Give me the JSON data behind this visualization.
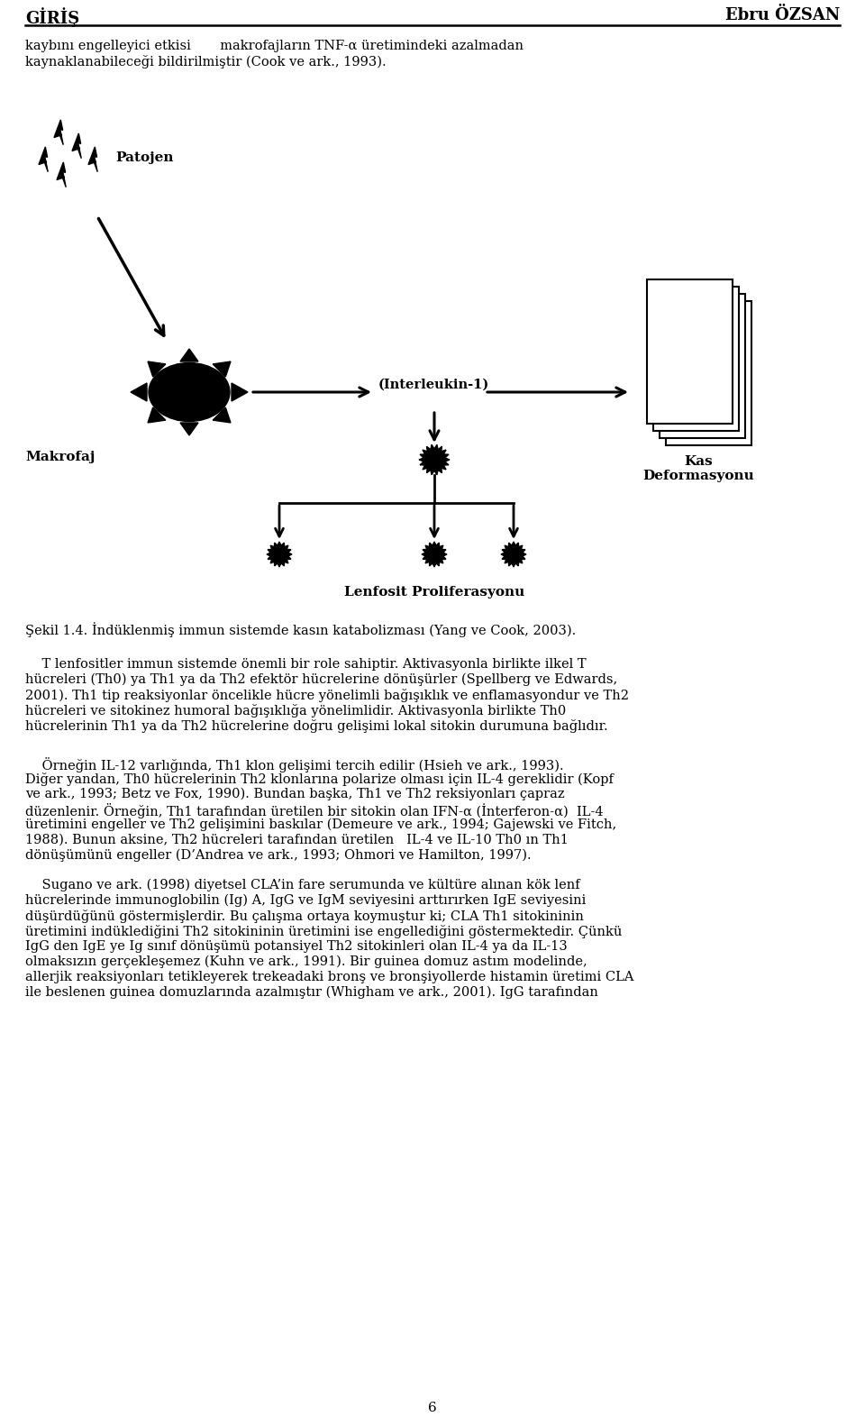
{
  "bg_color": "#ffffff",
  "header_left": "GİRİŞ",
  "header_right": "Ebru ÖZSAN",
  "body_fontsize": 10.5,
  "page_number": "6",
  "para1_line1": "kaybını engelleyici etkisi       makrofajların TNF-α üretimindeki azalmadan",
  "para1_line2": "kaynaklanabileceği bildirilmiştir (Cook ve ark., 1993).",
  "patojen_label": "Patojen",
  "makrofaj_label": "Makrofaj",
  "interleukin_label": "(Interleukin-1)",
  "kas_label": "Kas\nDeformasyonu",
  "lenfosit_label": "Lenfosit Proliferasyonu",
  "caption": "Şekil 1.4. İndüklenmiş immun sistemde kasın katabolizması (Yang ve Cook, 2003).",
  "para2_line1": "    T lenfositler immun sistemde önemli bir role sahiptir. Aktivasyonla birlikte ilkel T",
  "para2_line2": "hücreleri (Th0) ya Th1 ya da Th2 efektör hücrelerine dönüşürler (Spellberg ve Edwards,",
  "para2_line3": "2001). Th1 tip reaksiyonlar öncelikle hücre yönelimli bağışıklık ve enflamasyondur ve Th2",
  "para2_line4": "hücreleri ve sitokinez humoral bağışıklığa yönelimlidir. Aktivasyonla birlikte Th0",
  "para2_line5": "hücrelerinin Th1 ya da Th2 hücrelerine doğru gelişimi lokal sitokin durumuna bağlıdır.",
  "para3_line1": "    Örneğin IL-12 varlığında, Th1 klon gelişimi tercih edilir (Hsieh ve ark., 1993).",
  "para3_line2": "Diğer yandan, Th0 hücrelerinin Th2 klonlarına polarize olması için IL-4 gereklidir (Kopf",
  "para3_line3": "ve ark., 1993; Betz ve Fox, 1990). Bundan başka, Th1 ve Th2 reksiyonları çapraz",
  "para3_line4": "düzenlenir. Örneğin, Th1 tarafından üretilen bir sitokin olan IFN-α (İnterferon-α)  IL-4",
  "para3_line5": "üretimini engeller ve Th2 gelişimini baskılar (Demeure ve ark., 1994; Gajewski ve Fitch,",
  "para3_line6": "1988). Bunun aksine, Th2 hücreleri tarafından üretilen   IL-4 ve IL-10 Th0 ın Th1",
  "para3_line7": "dönüşümünü engeller (D’Andrea ve ark., 1993; Ohmori ve Hamilton, 1997).",
  "para4_line1": "    Sugano ve ark. (1998) diyetsel CLA’in fare serumunda ve kültüre alınan kök lenf",
  "para4_line2": "hücrelerinde immunoglobilin (Ig) A, IgG ve IgM seviyesini arttırırken IgE seviyesini",
  "para4_line3": "düşürdüğünü göstermişlerdir. Bu çalışma ortaya koymuştur ki; CLA Th1 sitokininin",
  "para4_line4": "üretimini indüklediğini Th2 sitokininin üretimini ise engellediğini göstermektedir. Çünkü",
  "para4_line5": "IgG den IgE ye Ig sınıf dönüşümü potansiyel Th2 sitokinleri olan IL-4 ya da IL-13",
  "para4_line6": "olmaksızın gerçekleşemez (Kuhn ve ark., 1991). Bir guinea domuz astım modelinde,",
  "para4_line7": "allerjik reaksiyonları tetikleyerek trekeadaki bronş ve bronşiyollerde histamin üretimi CLA",
  "para4_line8": "ile beslenen guinea domuzlarında azalmıştır (Whigham ve ark., 2001). IgG tarafından"
}
